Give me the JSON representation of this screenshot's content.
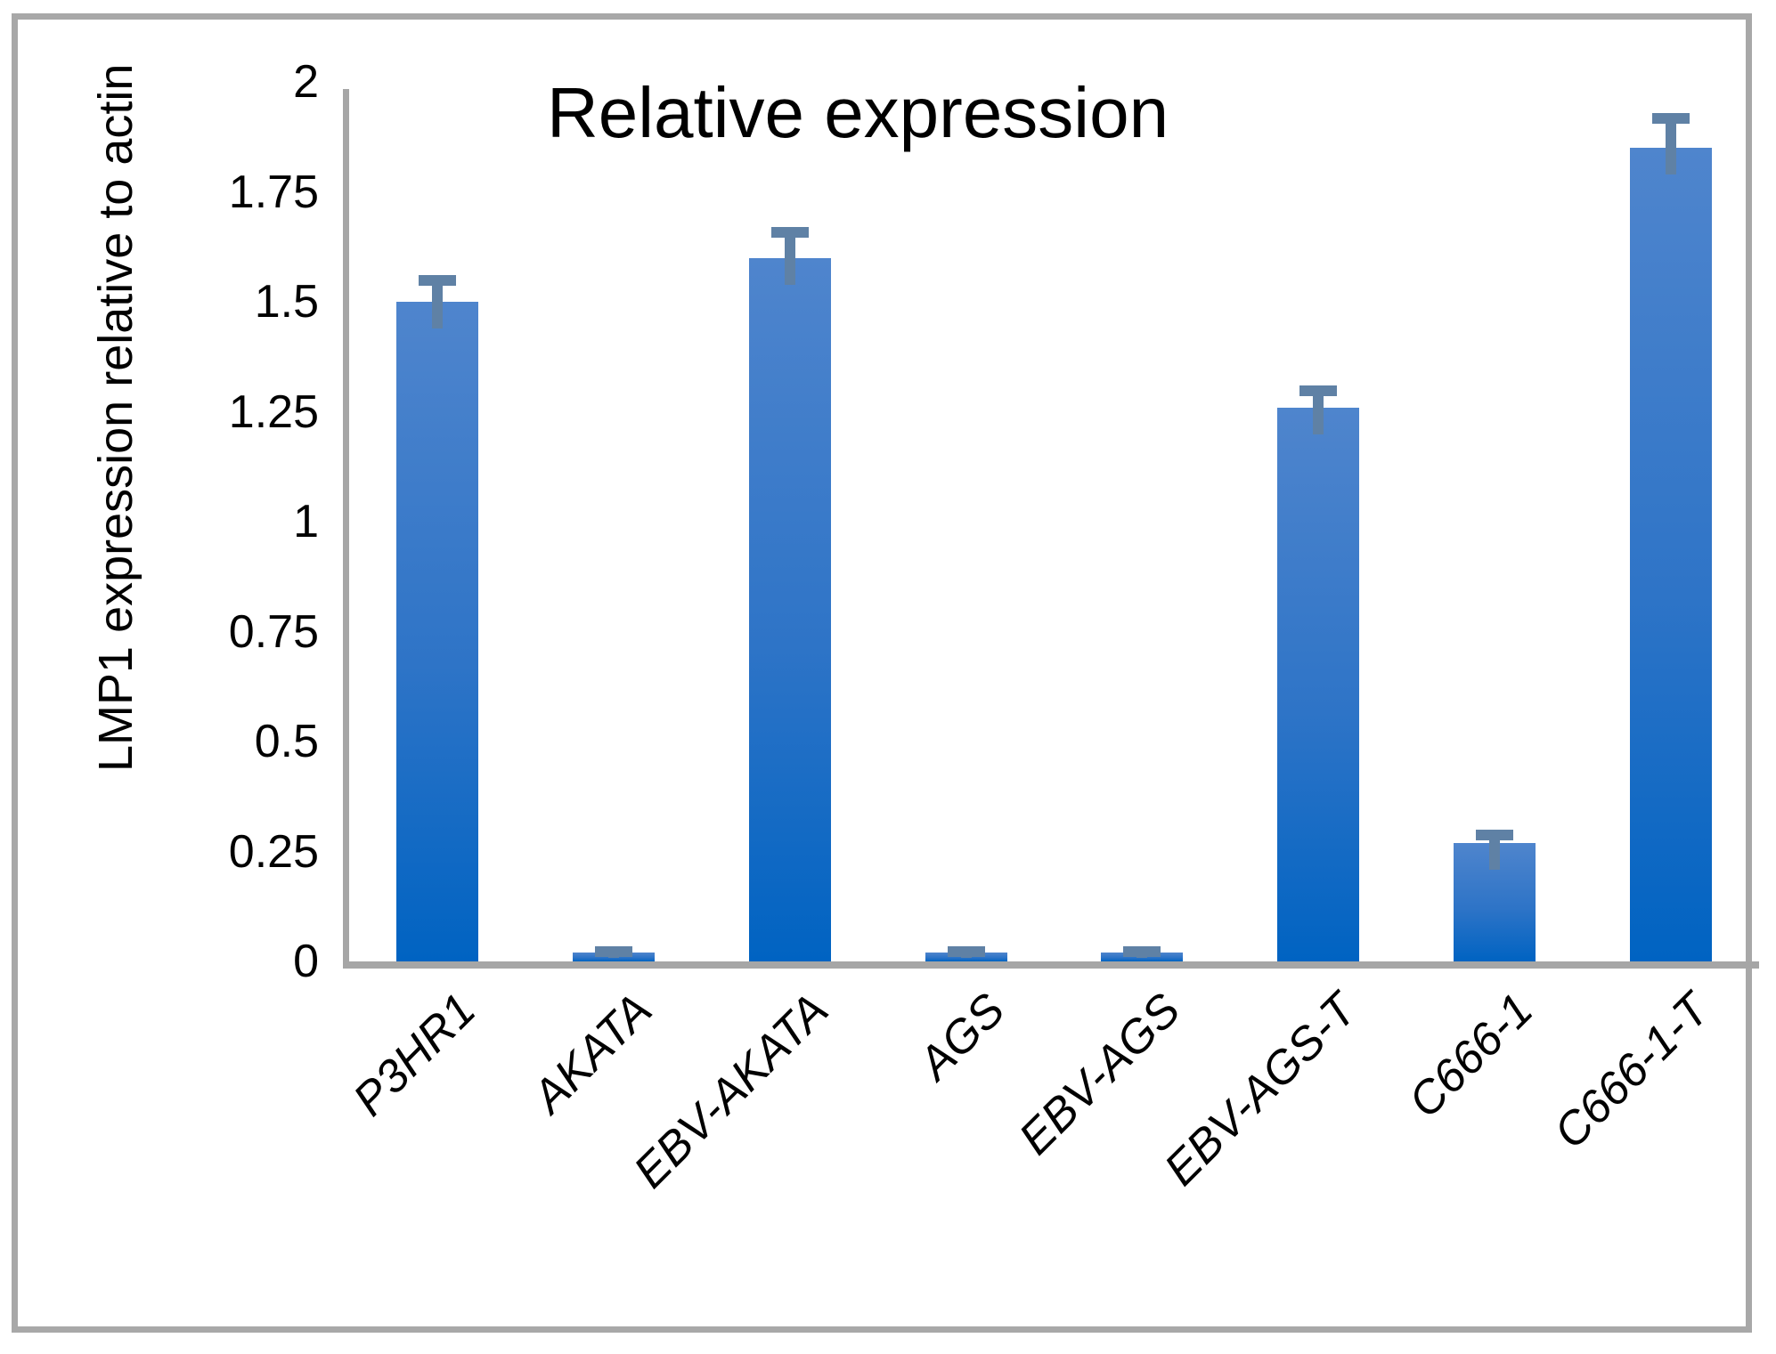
{
  "chart_data": {
    "type": "bar",
    "title": "Relative expression",
    "ylabel": "LMP1 expression relative to actin",
    "xlabel": "",
    "categories": [
      "P3HR1",
      "AKATA",
      "EBV-AKATA",
      "AGS",
      "EBV-AGS",
      "EBV-AGS-T",
      "C666-1",
      "C666-1-T"
    ],
    "values": [
      1.5,
      0.02,
      1.6,
      0.02,
      0.02,
      1.26,
      0.27,
      1.85
    ],
    "error_plus": [
      0.06,
      0.015,
      0.07,
      0.015,
      0.015,
      0.05,
      0.03,
      0.08
    ],
    "ylim": [
      0,
      2
    ],
    "ytick_values": [
      0,
      0.25,
      0.5,
      0.75,
      1,
      1.25,
      1.5,
      1.75,
      2
    ],
    "ytick_labels": [
      "0",
      "0.25",
      "0.5",
      "0.75",
      "1",
      "1.25",
      "1.5",
      "1.75",
      "2"
    ],
    "grid": false,
    "legend": "none",
    "colors": {
      "bar_top": "#4f85cd",
      "bar_bottom": "#0063c2",
      "error_bar": "#5f81a5",
      "axis": "#a6a6a6",
      "frame": "#a8a8a8",
      "text": "#000000"
    }
  }
}
